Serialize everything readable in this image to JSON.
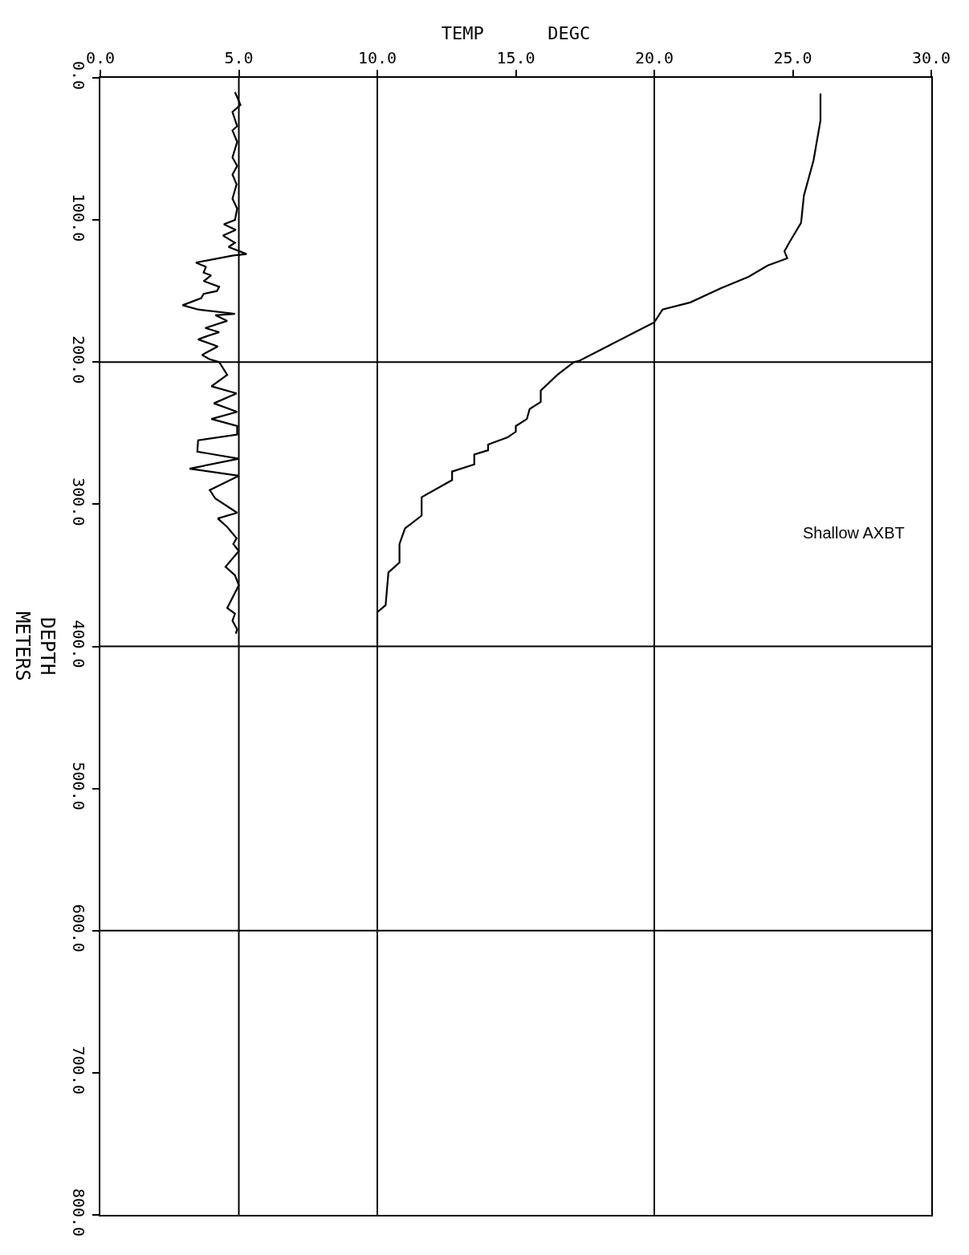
{
  "chart_data": {
    "type": "line",
    "xlabel": "TEMP      DEGC",
    "ylabel": "DEPTH\nMETERS",
    "xlim": [
      0,
      30
    ],
    "xticks": [
      {
        "value": 0,
        "label": "0.0"
      },
      {
        "value": 5,
        "label": "5.0"
      },
      {
        "value": 10,
        "label": "10.0"
      },
      {
        "value": 15,
        "label": "15.0"
      },
      {
        "value": 20,
        "label": "20.0"
      },
      {
        "value": 25,
        "label": "25.0"
      },
      {
        "value": 30,
        "label": "30.0"
      }
    ],
    "ylim": [
      800,
      0
    ],
    "yticks": [
      {
        "value": 0,
        "label": "0.0"
      },
      {
        "value": 100,
        "label": "100.0"
      },
      {
        "value": 200,
        "label": "200.0"
      },
      {
        "value": 300,
        "label": "300.0"
      },
      {
        "value": 400,
        "label": "400.0"
      },
      {
        "value": 500,
        "label": "500.0"
      },
      {
        "value": 600,
        "label": "600.0"
      },
      {
        "value": 700,
        "label": "700.0"
      },
      {
        "value": 800,
        "label": "800.0"
      }
    ],
    "marker": "none",
    "line_style": "solid",
    "series": [
      {
        "color": "#000000",
        "x": [
          26.0,
          26.0,
          25.75,
          25.4,
          25.3,
          24.9,
          24.7,
          24.8,
          24.1,
          23.4,
          22.4,
          21.3,
          20.3,
          20.0,
          19.3,
          18.4,
          17.3,
          17.1,
          16.5,
          15.9,
          15.9,
          15.5,
          15.4,
          15.0,
          15.0,
          14.7,
          14.0,
          14.0,
          13.5,
          13.5,
          12.7,
          12.7,
          11.6,
          11.6,
          11.0,
          10.8,
          10.8,
          10.4,
          10.3,
          10.0,
          10.0,
          10.0
        ],
        "values": [
          11,
          30,
          58,
          83,
          102,
          115,
          122,
          127,
          132,
          140,
          148,
          158,
          163,
          172,
          179,
          188,
          199,
          200,
          209,
          220,
          228,
          233,
          240,
          245,
          249,
          253,
          258,
          262,
          265,
          272,
          277,
          283,
          295,
          308,
          317,
          328,
          341,
          348,
          371,
          376,
          386,
          399
        ]
      },
      {
        "color": "#000000",
        "x": [
          4.86,
          5.06,
          4.77,
          4.94,
          4.77,
          4.94,
          4.77,
          4.94,
          4.77,
          4.92,
          4.77,
          4.94,
          4.86,
          4.46,
          4.89,
          4.43,
          4.86,
          4.63,
          5.28,
          4.8,
          3.45,
          3.81,
          3.73,
          4.0,
          3.73,
          4.29,
          4.21,
          3.73,
          3.64,
          2.97,
          3.53,
          4.86,
          4.15,
          4.58,
          3.79,
          4.29,
          3.81,
          3.53,
          4.24,
          3.67,
          3.95,
          4.29,
          4.58,
          4.01,
          4.92,
          4.1,
          4.94,
          4.01,
          4.94,
          4.94,
          3.53,
          3.5,
          5.0,
          3.22,
          5.0,
          3.95,
          4.15,
          4.94,
          4.24,
          4.58,
          4.92,
          4.8,
          5.0,
          4.52,
          4.86,
          5.0,
          4.58,
          4.86,
          4.77,
          4.94,
          4.89
        ],
        "values": [
          10,
          19,
          24,
          34,
          37,
          45,
          56,
          62,
          68,
          75,
          85,
          92,
          100,
          103,
          107,
          111,
          116,
          119,
          124,
          125,
          130,
          133,
          137,
          139,
          143,
          147,
          150,
          152,
          155,
          160,
          163,
          166,
          167,
          171,
          176,
          179,
          182,
          184,
          189,
          195,
          198,
          200,
          209,
          217,
          222,
          229,
          235,
          240,
          245,
          251,
          255,
          263,
          268,
          275,
          280,
          290,
          296,
          306,
          310,
          316,
          324,
          328,
          333,
          344,
          350,
          357,
          373,
          377,
          382,
          388,
          391
        ]
      }
    ],
    "ref_lines": [
      {
        "axis": "x",
        "value": 5,
        "color": "#000000"
      },
      {
        "axis": "x",
        "value": 10,
        "color": "#000000"
      },
      {
        "axis": "x",
        "value": 20,
        "color": "#000000"
      },
      {
        "axis": "y",
        "value": 200,
        "color": "#000000"
      },
      {
        "axis": "y",
        "value": 400,
        "color": "#000000"
      },
      {
        "axis": "y",
        "value": 600,
        "color": "#000000"
      }
    ],
    "annotations": [
      "Shallow AXBT"
    ]
  }
}
